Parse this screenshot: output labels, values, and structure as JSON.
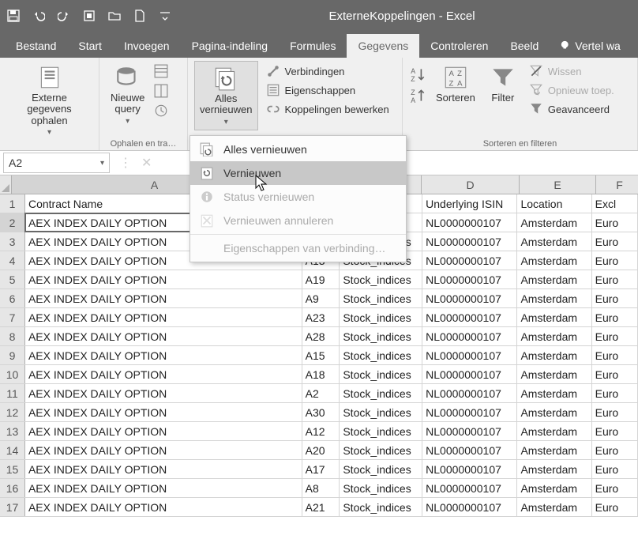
{
  "title": "ExterneKoppelingen  -  Excel",
  "tabs": {
    "file": "Bestand",
    "home": "Start",
    "insert": "Invoegen",
    "layout": "Pagina-indeling",
    "formulas": "Formules",
    "data": "Gegevens",
    "review": "Controleren",
    "view": "Beeld",
    "tell": "Vertel wa"
  },
  "ribbon": {
    "external": {
      "label": "Externe gegevens\nophalen"
    },
    "newquery": {
      "label": "Nieuwe\nquery"
    },
    "group_get": "Ophalen en tra…",
    "refresh": {
      "label": "Alles\nvernieuwen"
    },
    "connections": "Verbindingen",
    "properties": "Eigenschappen",
    "editlinks": "Koppelingen bewerken",
    "sort": "Sorteren",
    "filter": "Filter",
    "clear": "Wissen",
    "reapply": "Opnieuw toep.",
    "advanced": "Geavanceerd",
    "group_sortfilter": "Sorteren en filteren"
  },
  "dropdown": {
    "refresh_all": "Alles vernieuwen",
    "refresh": "Vernieuwen",
    "status": "Status vernieuwen",
    "cancel": "Vernieuwen annuleren",
    "props": "Eigenschappen van verbinding…"
  },
  "namebox": "A2",
  "colWidths": {
    "A": 362,
    "B": 49,
    "C": 108,
    "D": 124,
    "E": 97,
    "F": 60
  },
  "columns": [
    "A",
    "B",
    "C",
    "D",
    "E",
    "F"
  ],
  "headerRow": [
    "Contract Name",
    "",
    "ype",
    "Underlying ISIN",
    "Location",
    "Excl"
  ],
  "rows": [
    [
      "AEX INDEX DAILY OPTION",
      "",
      "dices",
      "NL0000000107",
      "Amsterdam",
      "Euro"
    ],
    [
      "AEX INDEX DAILY OPTION",
      "A14",
      "Stock_indices",
      "NL0000000107",
      "Amsterdam",
      "Euro"
    ],
    [
      "AEX INDEX DAILY OPTION",
      "A13",
      "Stock_indices",
      "NL0000000107",
      "Amsterdam",
      "Euro"
    ],
    [
      "AEX INDEX DAILY OPTION",
      "A19",
      "Stock_indices",
      "NL0000000107",
      "Amsterdam",
      "Euro"
    ],
    [
      "AEX INDEX DAILY OPTION",
      "A9",
      "Stock_indices",
      "NL0000000107",
      "Amsterdam",
      "Euro"
    ],
    [
      "AEX INDEX DAILY OPTION",
      "A23",
      "Stock_indices",
      "NL0000000107",
      "Amsterdam",
      "Euro"
    ],
    [
      "AEX INDEX DAILY OPTION",
      "A28",
      "Stock_indices",
      "NL0000000107",
      "Amsterdam",
      "Euro"
    ],
    [
      "AEX INDEX DAILY OPTION",
      "A15",
      "Stock_indices",
      "NL0000000107",
      "Amsterdam",
      "Euro"
    ],
    [
      "AEX INDEX DAILY OPTION",
      "A18",
      "Stock_indices",
      "NL0000000107",
      "Amsterdam",
      "Euro"
    ],
    [
      "AEX INDEX DAILY OPTION",
      "A2",
      "Stock_indices",
      "NL0000000107",
      "Amsterdam",
      "Euro"
    ],
    [
      "AEX INDEX DAILY OPTION",
      "A30",
      "Stock_indices",
      "NL0000000107",
      "Amsterdam",
      "Euro"
    ],
    [
      "AEX INDEX DAILY OPTION",
      "A12",
      "Stock_indices",
      "NL0000000107",
      "Amsterdam",
      "Euro"
    ],
    [
      "AEX INDEX DAILY OPTION",
      "A20",
      "Stock_indices",
      "NL0000000107",
      "Amsterdam",
      "Euro"
    ],
    [
      "AEX INDEX DAILY OPTION",
      "A17",
      "Stock_indices",
      "NL0000000107",
      "Amsterdam",
      "Euro"
    ],
    [
      "AEX INDEX DAILY OPTION",
      "A8",
      "Stock_indices",
      "NL0000000107",
      "Amsterdam",
      "Euro"
    ],
    [
      "AEX INDEX DAILY OPTION",
      "A21",
      "Stock_indices",
      "NL0000000107",
      "Amsterdam",
      "Euro"
    ]
  ],
  "colors": {
    "accent": "#3a7a3a",
    "ribbon_bg": "#f0f0f0",
    "grid_border": "#d4d4d4",
    "header_bg": "#e6e6e6"
  }
}
